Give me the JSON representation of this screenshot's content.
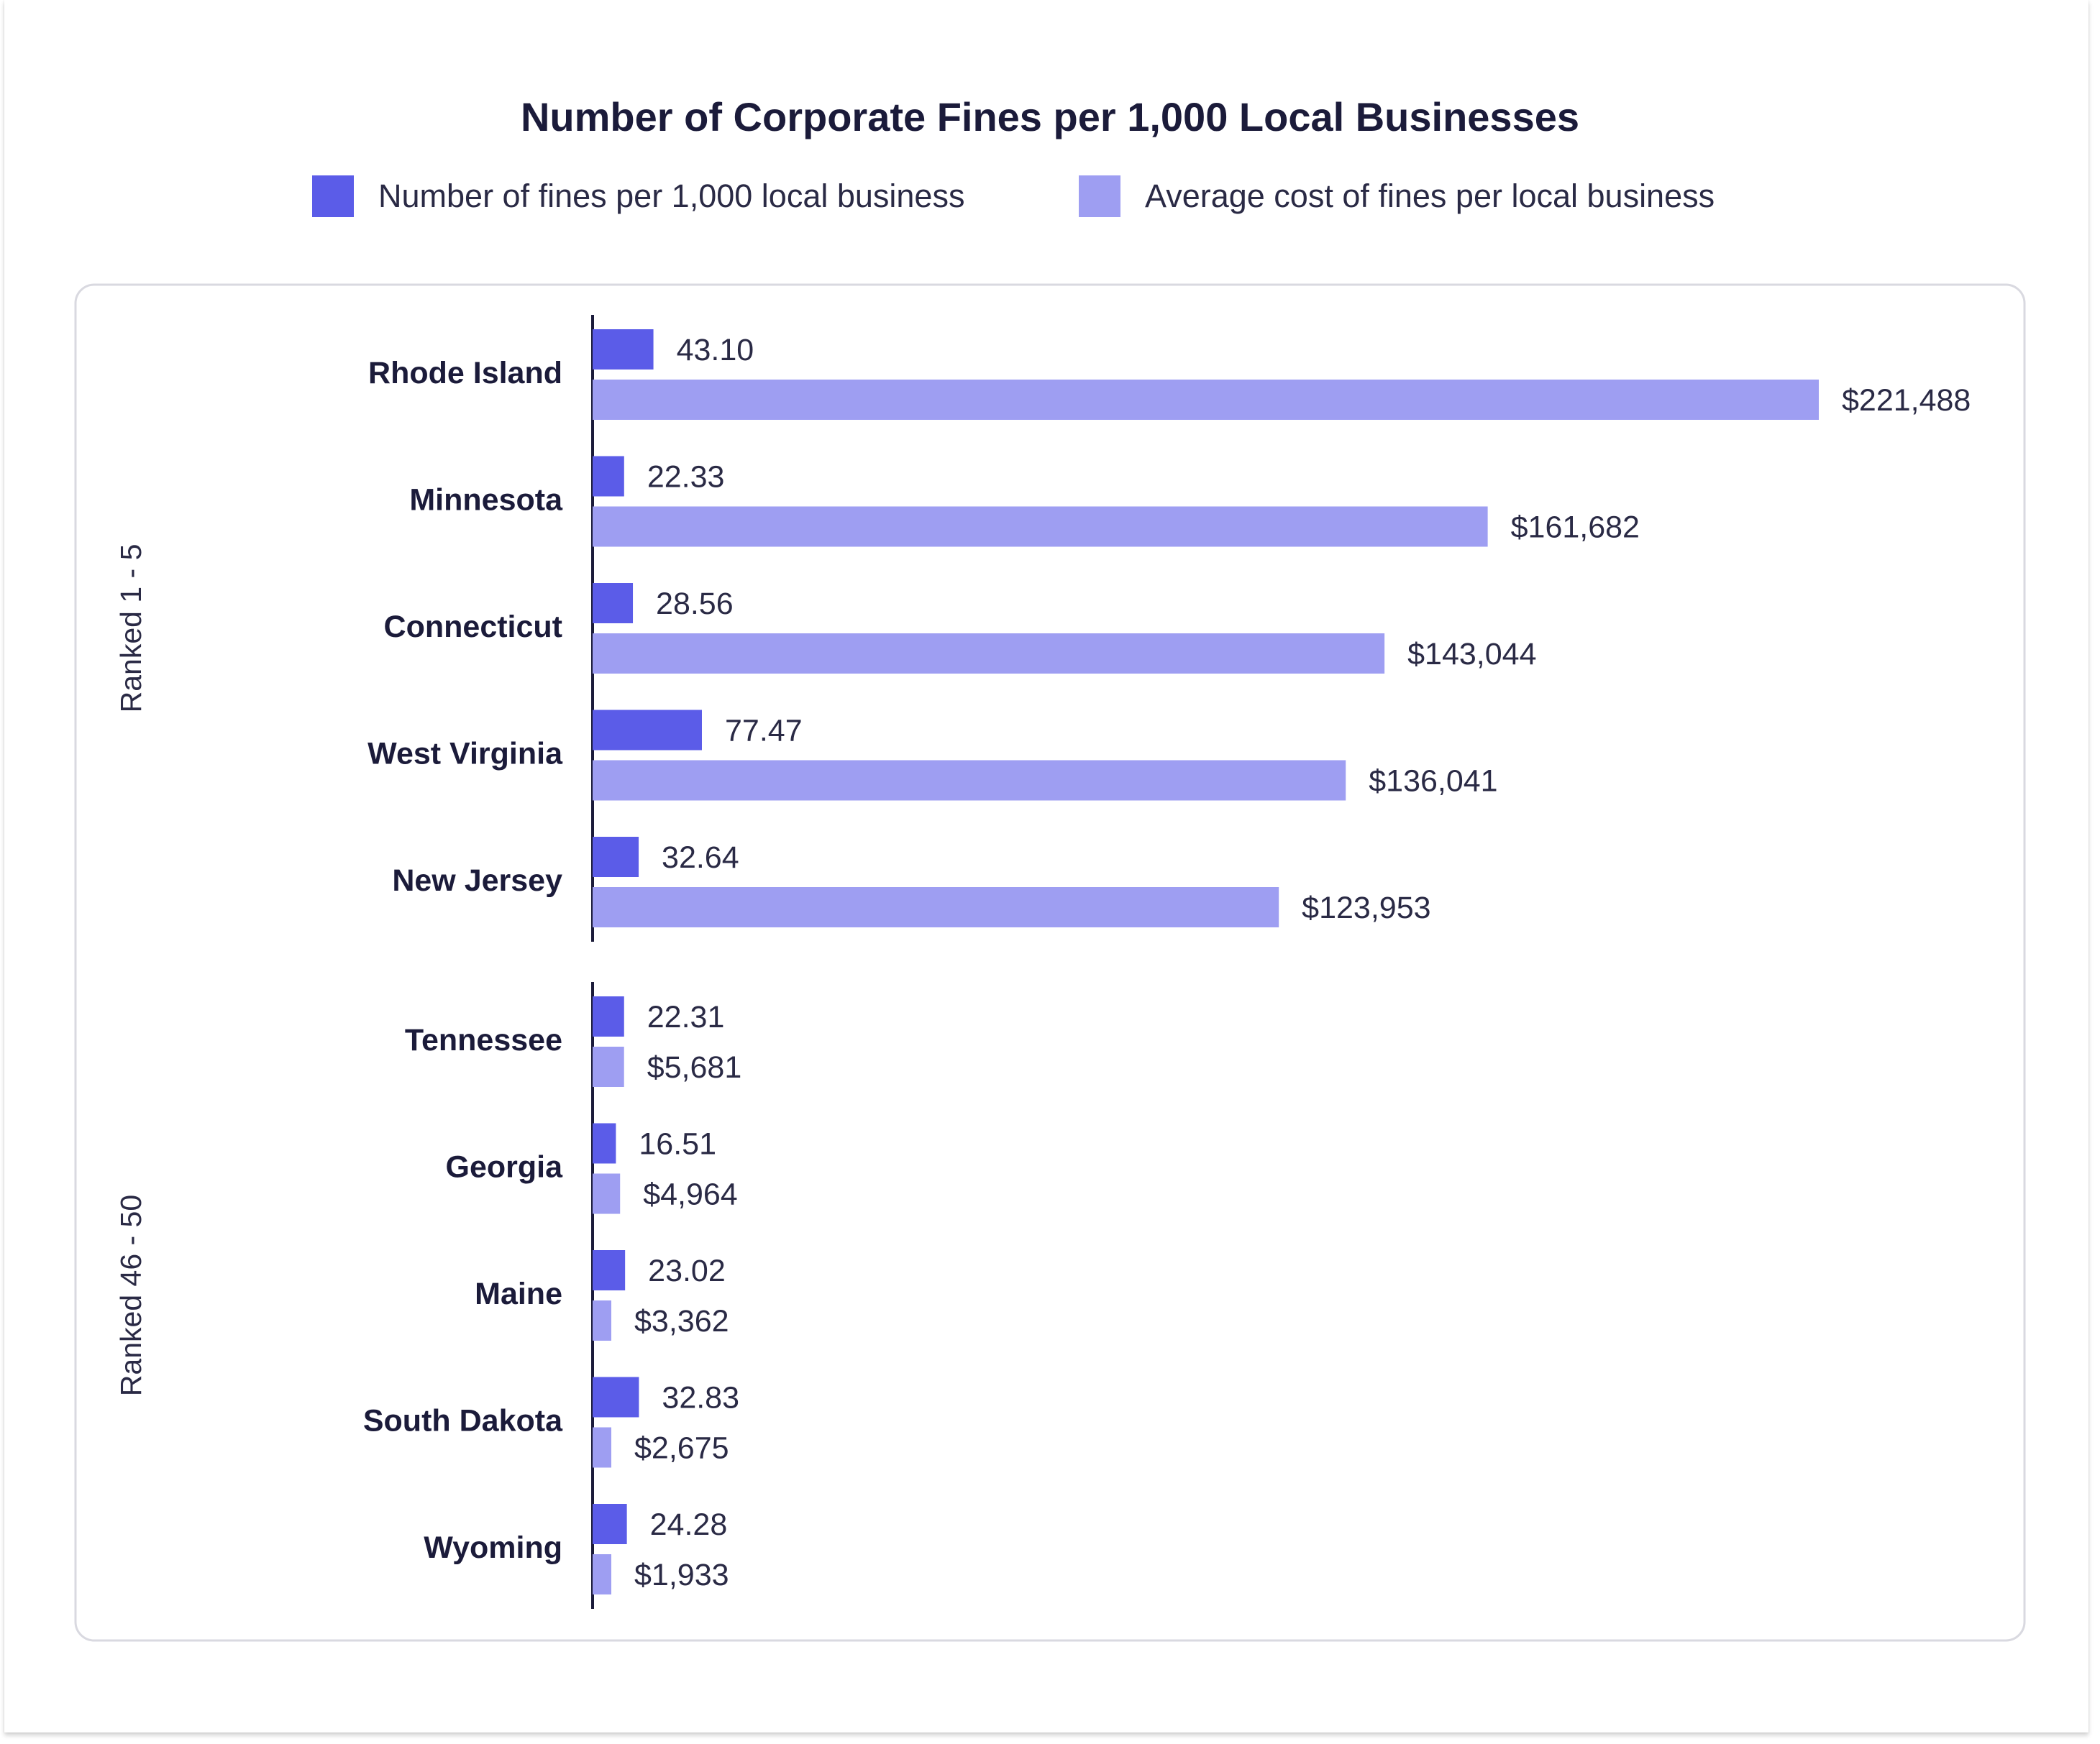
{
  "chart_data": {
    "type": "bar",
    "orientation": "horizontal",
    "title": "Number of Corporate Fines per 1,000 Local Businesses",
    "legend": [
      {
        "name": "Number of fines per 1,000 local business",
        "color": "#5b5ce8"
      },
      {
        "name": "Average cost of fines per local business",
        "color": "#9e9ef2"
      }
    ],
    "legend_position": "top",
    "groups": [
      {
        "label": "Ranked 1 - 5",
        "rows": [
          {
            "state": "Rhode Island",
            "fines": 43.1,
            "fines_label": "43.10",
            "cost": 221488,
            "cost_label": "$221,488"
          },
          {
            "state": "Minnesota",
            "fines": 22.33,
            "fines_label": "22.33",
            "cost": 161682,
            "cost_label": "$161,682"
          },
          {
            "state": "Connecticut",
            "fines": 28.56,
            "fines_label": "28.56",
            "cost": 143044,
            "cost_label": "$143,044"
          },
          {
            "state": "West Virginia",
            "fines": 77.47,
            "fines_label": "77.47",
            "cost": 136041,
            "cost_label": "$136,041"
          },
          {
            "state": "New Jersey",
            "fines": 32.64,
            "fines_label": "32.64",
            "cost": 123953,
            "cost_label": "$123,953"
          }
        ]
      },
      {
        "label": "Ranked 46 - 50",
        "rows": [
          {
            "state": "Tennessee",
            "fines": 22.31,
            "fines_label": "22.31",
            "cost": 5681,
            "cost_label": "$5,681"
          },
          {
            "state": "Georgia",
            "fines": 16.51,
            "fines_label": "16.51",
            "cost": 4964,
            "cost_label": "$4,964"
          },
          {
            "state": "Maine",
            "fines": 23.02,
            "fines_label": "23.02",
            "cost": 3362,
            "cost_label": "$3,362"
          },
          {
            "state": "South Dakota",
            "fines": 32.83,
            "fines_label": "32.83",
            "cost": 2675,
            "cost_label": "$2,675"
          },
          {
            "state": "Wyoming",
            "fines": 24.28,
            "fines_label": "24.28",
            "cost": 1933,
            "cost_label": "$1,933"
          }
        ]
      }
    ],
    "fines_axis_max": 77.47,
    "cost_axis_max": 221488,
    "grid": false
  }
}
